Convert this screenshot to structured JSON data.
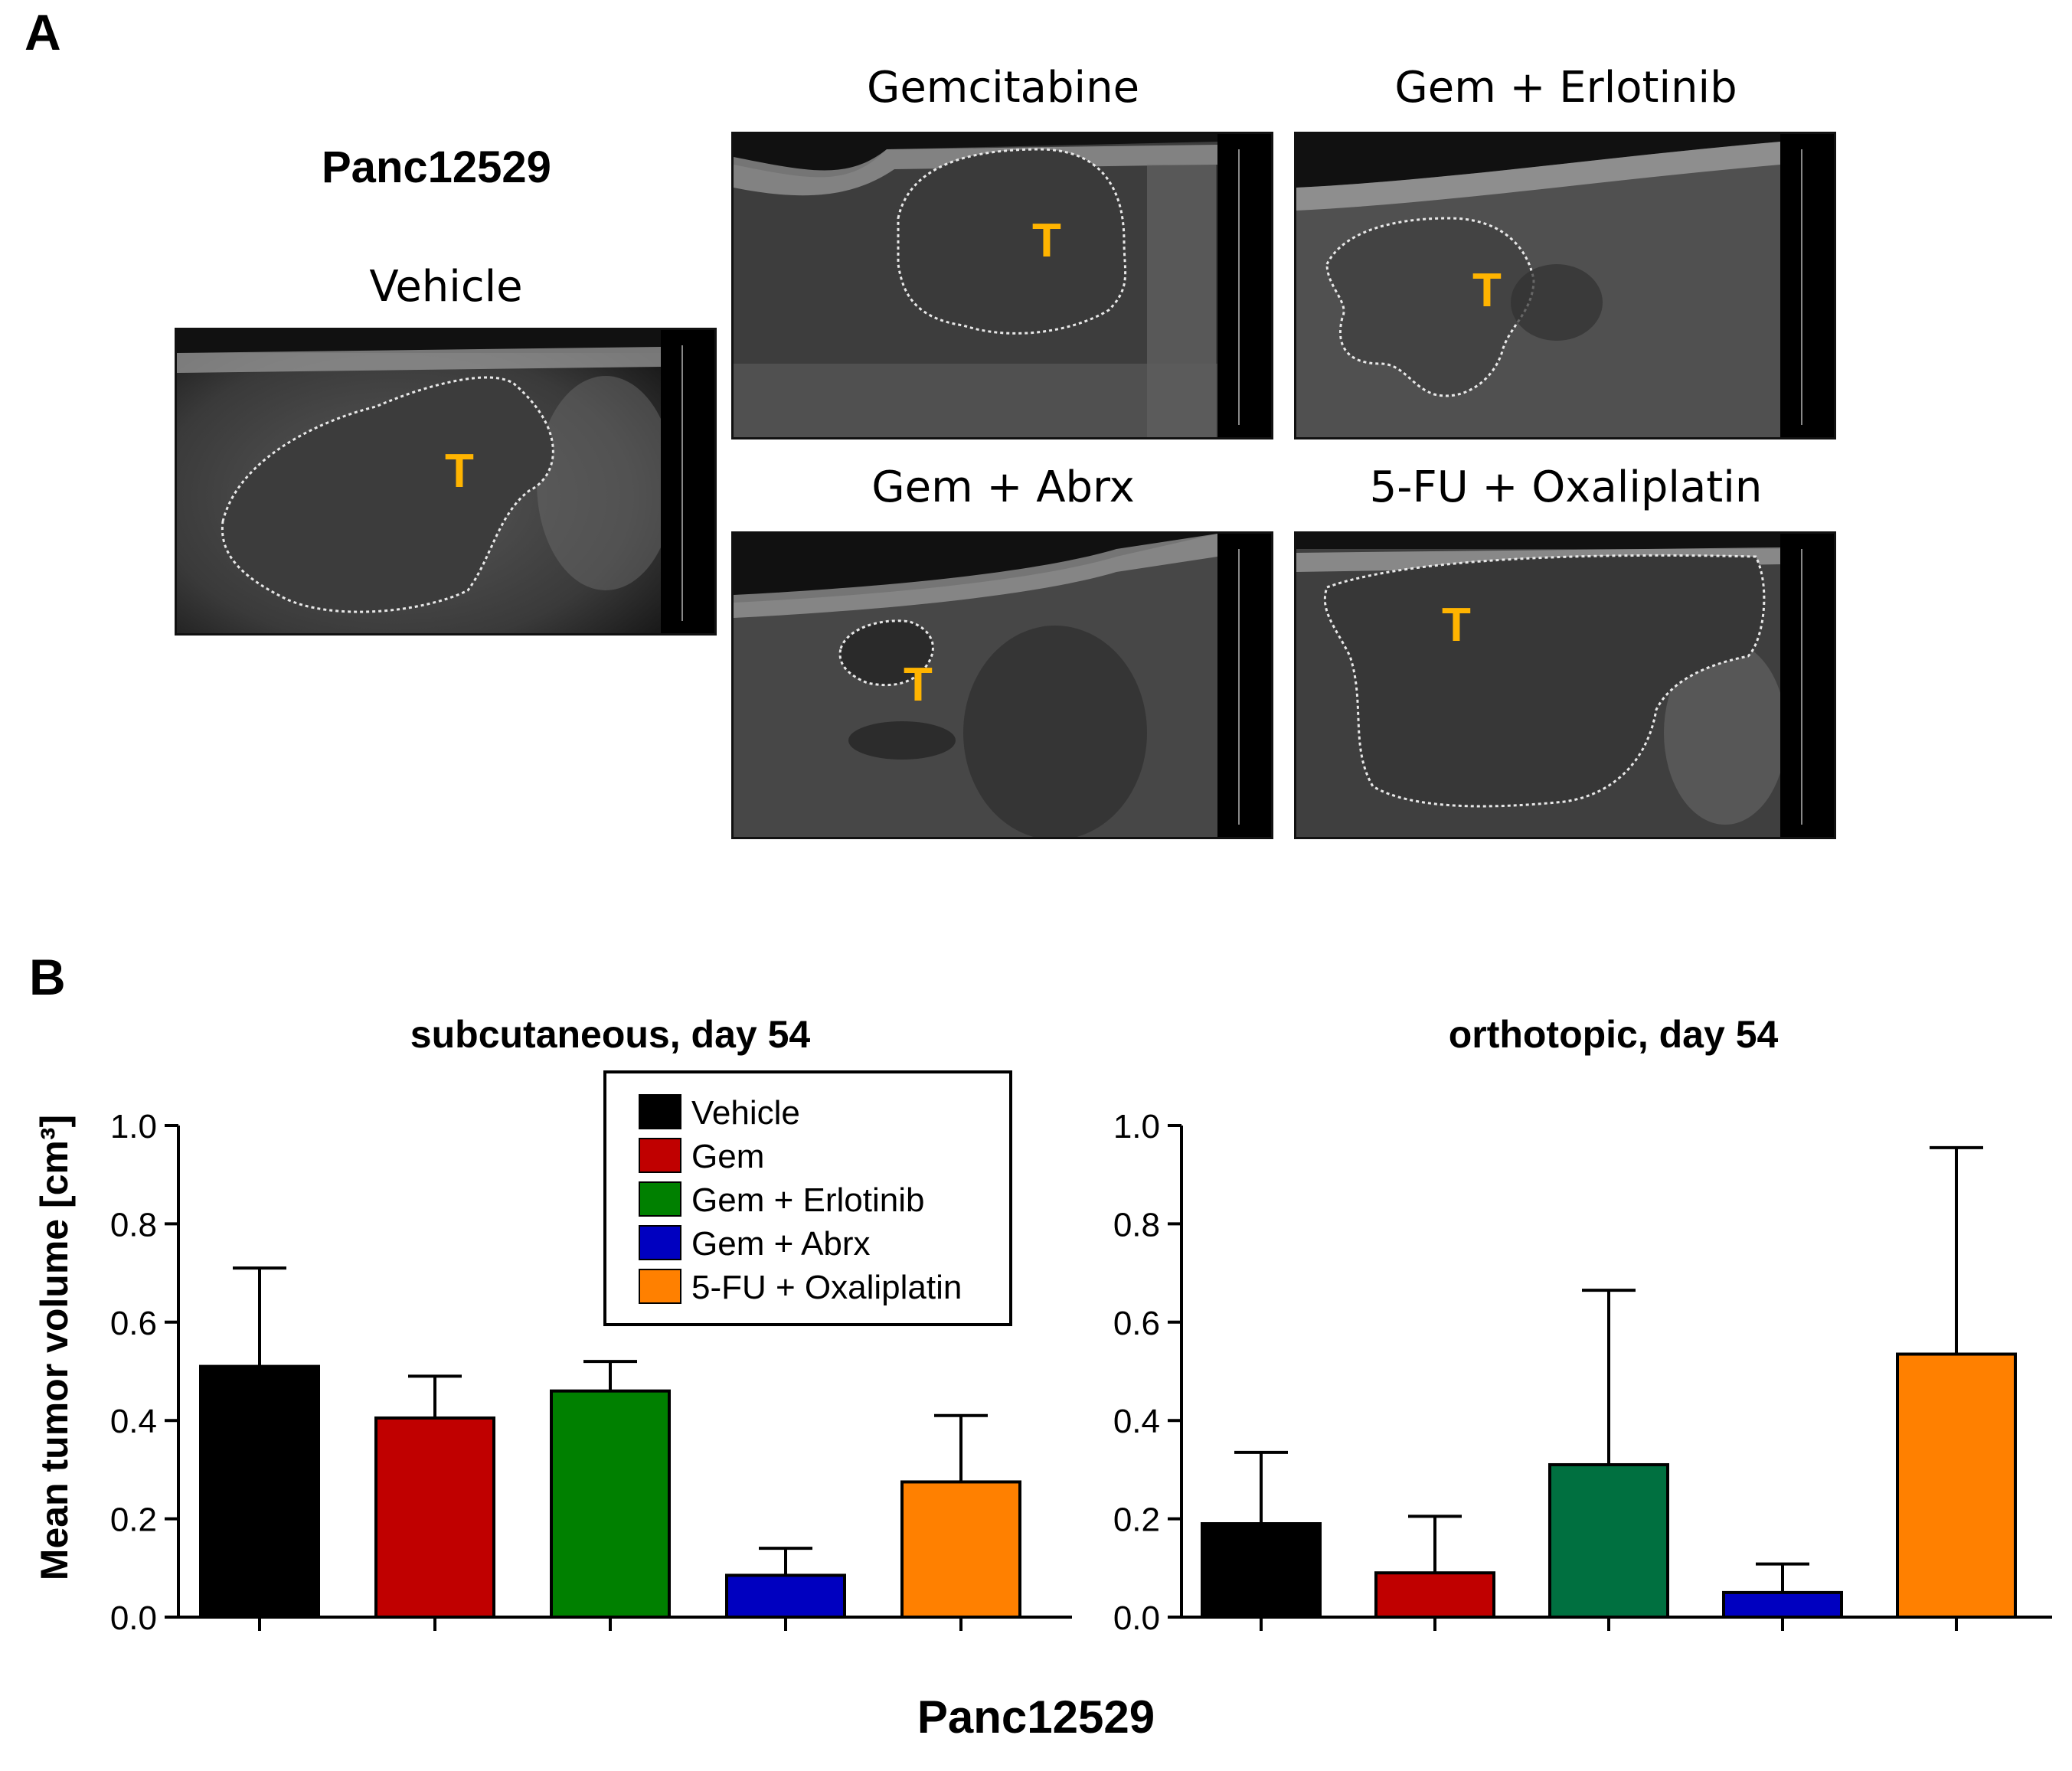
{
  "panel_a": {
    "letter": "A",
    "cohort_label": "Panc12529",
    "tumor_marker": "T",
    "images": [
      {
        "id": "vehicle",
        "title": "Vehicle"
      },
      {
        "id": "gemcitabine",
        "title": "Gemcitabine"
      },
      {
        "id": "gem-erlotinib",
        "title": "Gem + Erlotinib"
      },
      {
        "id": "gem-abrx",
        "title": "Gem + Abrx"
      },
      {
        "id": "5fu-oxaliplatin",
        "title": "5-FU + Oxaliplatin"
      }
    ]
  },
  "panel_b": {
    "letter": "B",
    "footer_label": "Panc12529"
  },
  "chart_data": [
    {
      "type": "bar",
      "title": "subcutaneous, day 54",
      "ylabel": "Mean tumor volume [cm³]",
      "xlabel": "",
      "ylim": [
        0,
        1.0
      ],
      "yticks": [
        "0.0",
        "0.2",
        "0.4",
        "0.6",
        "0.8",
        "1.0"
      ],
      "categories": [
        "Vehicle",
        "Gem",
        "Gem + Erlotinib",
        "Gem + Abrx",
        "5-FU + Oxaliplatin"
      ],
      "values": [
        0.51,
        0.405,
        0.46,
        0.085,
        0.275
      ],
      "errors": [
        0.2,
        0.085,
        0.06,
        0.055,
        0.135
      ],
      "colors": [
        "#000000",
        "#c00000",
        "#008000",
        "#0000c0",
        "#ff8000"
      ],
      "legend": {
        "placement": "top-center",
        "entries": [
          {
            "label": "Vehicle",
            "color": "#000000"
          },
          {
            "label": "Gem",
            "color": "#c00000"
          },
          {
            "label": "Gem + Erlotinib",
            "color": "#008000"
          },
          {
            "label": "Gem + Abrx",
            "color": "#0000c0"
          },
          {
            "label": "5-FU + Oxaliplatin",
            "color": "#ff8000"
          }
        ]
      }
    },
    {
      "type": "bar",
      "title": "orthotopic, day 54",
      "ylabel": "",
      "xlabel": "",
      "ylim": [
        0,
        1.0
      ],
      "yticks": [
        "0.0",
        "0.2",
        "0.4",
        "0.6",
        "0.8",
        "1.0"
      ],
      "categories": [
        "Vehicle",
        "Gem",
        "Gem + Erlotinib",
        "Gem + Abrx",
        "5-FU + Oxaliplatin"
      ],
      "values": [
        0.19,
        0.09,
        0.31,
        0.05,
        0.535
      ],
      "errors": [
        0.145,
        0.115,
        0.355,
        0.058,
        0.42
      ],
      "colors": [
        "#000000",
        "#c00000",
        "#007040",
        "#0000c0",
        "#ff8000"
      ]
    }
  ]
}
